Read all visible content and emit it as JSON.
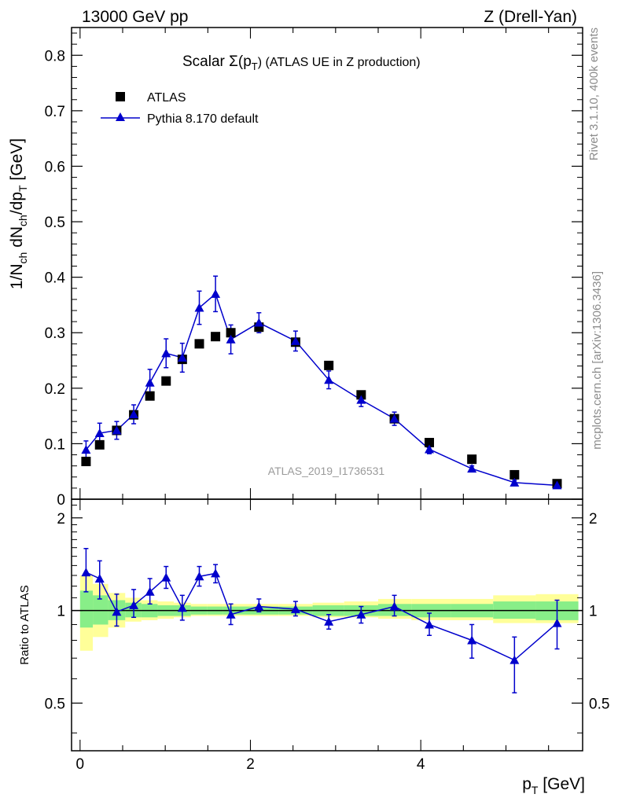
{
  "header": {
    "left": "13000 GeV pp",
    "right": "Z (Drell-Yan)"
  },
  "side_labels": {
    "rivet": "Rivet 3.1.10,  400k events",
    "mcplots": "mcplots.cern.ch [arXiv:1306.3436]"
  },
  "chart_data": [
    {
      "type": "scatter",
      "panel": "main",
      "title": "Scalar Σ(pT) (ATLAS UE in Z production)",
      "title_parts": {
        "prefix": "Scalar Σ(p",
        "sub": "T",
        "suffix": ") (ATLAS UE in Z production)"
      },
      "ylabel": "1/Nch dNch/dpT [GeV]",
      "ylabel_parts": {
        "a": "1/N",
        "a_sub": "ch",
        "b": " dN",
        "b_sub": "ch",
        "c": "/dp",
        "c_sub": "T",
        "d": " [GeV]"
      },
      "xlabel": "",
      "xlim": [
        -0.1,
        5.9
      ],
      "ylim": [
        0,
        0.85
      ],
      "yticks": [
        "0",
        "0.1",
        "0.2",
        "0.3",
        "0.4",
        "0.5",
        "0.6",
        "0.7",
        "0.8"
      ],
      "watermark": "ATLAS_2019_I1736531",
      "legend_position": "top-left",
      "legend": [
        {
          "name": "ATLAS",
          "marker": "square",
          "color": "#000000"
        },
        {
          "name": "Pythia 8.170 default",
          "marker": "triangle",
          "color": "#0000cc"
        }
      ],
      "x": [
        0.07,
        0.23,
        0.43,
        0.63,
        0.82,
        1.01,
        1.2,
        1.4,
        1.59,
        1.77,
        2.1,
        2.53,
        2.92,
        3.3,
        3.69,
        4.1,
        4.6,
        5.1,
        5.6
      ],
      "series": [
        {
          "name": "ATLAS",
          "values": [
            0.068,
            0.098,
            0.124,
            0.152,
            0.186,
            0.213,
            0.252,
            0.28,
            0.293,
            0.3,
            0.31,
            0.283,
            0.241,
            0.188,
            0.145,
            0.102,
            0.072,
            0.044,
            0.028
          ]
        },
        {
          "name": "Pythia 8.170 default",
          "values": [
            0.089,
            0.119,
            0.124,
            0.153,
            0.21,
            0.263,
            0.255,
            0.345,
            0.37,
            0.288,
            0.318,
            0.285,
            0.215,
            0.179,
            0.145,
            0.09,
            0.055,
            0.03,
            0.025
          ],
          "errors": [
            0.016,
            0.018,
            0.016,
            0.017,
            0.024,
            0.026,
            0.026,
            0.03,
            0.032,
            0.026,
            0.018,
            0.018,
            0.016,
            0.012,
            0.012,
            0.008,
            0.005,
            0.004,
            0.004
          ]
        }
      ]
    },
    {
      "type": "scatter",
      "panel": "ratio",
      "ylabel": "Ratio to ATLAS",
      "xlabel": "pT [GeV]",
      "xlabel_parts": {
        "a": "p",
        "sub": "T",
        "b": " [GeV]"
      },
      "xlim": [
        -0.1,
        5.9
      ],
      "ylim": [
        0.35,
        2.3
      ],
      "xticks": [
        "0",
        "2",
        "4"
      ],
      "yticks": [
        "0.5",
        "1",
        "2"
      ],
      "reference": 1,
      "x": [
        0.07,
        0.23,
        0.43,
        0.63,
        0.82,
        1.01,
        1.2,
        1.4,
        1.59,
        1.77,
        2.1,
        2.53,
        2.92,
        3.3,
        3.69,
        4.1,
        4.6,
        5.1,
        5.6
      ],
      "band_edges": [
        0,
        0.15,
        0.33,
        0.53,
        0.72,
        0.91,
        1.1,
        1.3,
        1.49,
        1.68,
        1.88,
        2.33,
        2.73,
        3.1,
        3.5,
        3.89,
        4.35,
        4.85,
        5.35,
        5.85
      ],
      "bands": {
        "green_low": [
          0.88,
          0.9,
          0.93,
          0.95,
          0.95,
          0.96,
          0.96,
          0.97,
          0.97,
          0.97,
          0.97,
          0.97,
          0.96,
          0.96,
          0.96,
          0.95,
          0.95,
          0.94,
          0.93
        ],
        "green_high": [
          1.16,
          1.12,
          1.08,
          1.06,
          1.05,
          1.04,
          1.04,
          1.03,
          1.03,
          1.03,
          1.03,
          1.03,
          1.04,
          1.04,
          1.05,
          1.05,
          1.05,
          1.07,
          1.07
        ],
        "yellow_low": [
          0.74,
          0.82,
          0.88,
          0.92,
          0.93,
          0.94,
          0.95,
          0.96,
          0.96,
          0.96,
          0.96,
          0.96,
          0.95,
          0.95,
          0.94,
          0.93,
          0.93,
          0.91,
          0.91
        ],
        "yellow_high": [
          1.3,
          1.22,
          1.14,
          1.1,
          1.08,
          1.07,
          1.06,
          1.05,
          1.05,
          1.05,
          1.05,
          1.05,
          1.06,
          1.07,
          1.09,
          1.09,
          1.09,
          1.12,
          1.13
        ]
      },
      "series": [
        {
          "name": "Pythia 8.170 default",
          "values": [
            1.33,
            1.27,
            0.99,
            1.04,
            1.15,
            1.28,
            1.02,
            1.29,
            1.32,
            0.97,
            1.03,
            1.01,
            0.92,
            0.97,
            1.03,
            0.9,
            0.8,
            0.69,
            0.91
          ],
          "err_low": [
            0.18,
            0.18,
            0.1,
            0.09,
            0.1,
            0.1,
            0.09,
            0.09,
            0.09,
            0.07,
            0.04,
            0.05,
            0.05,
            0.06,
            0.07,
            0.07,
            0.1,
            0.15,
            0.16
          ],
          "err_high": [
            0.26,
            0.18,
            0.14,
            0.13,
            0.12,
            0.11,
            0.1,
            0.1,
            0.09,
            0.08,
            0.06,
            0.06,
            0.05,
            0.06,
            0.09,
            0.08,
            0.1,
            0.13,
            0.17
          ]
        }
      ]
    }
  ]
}
